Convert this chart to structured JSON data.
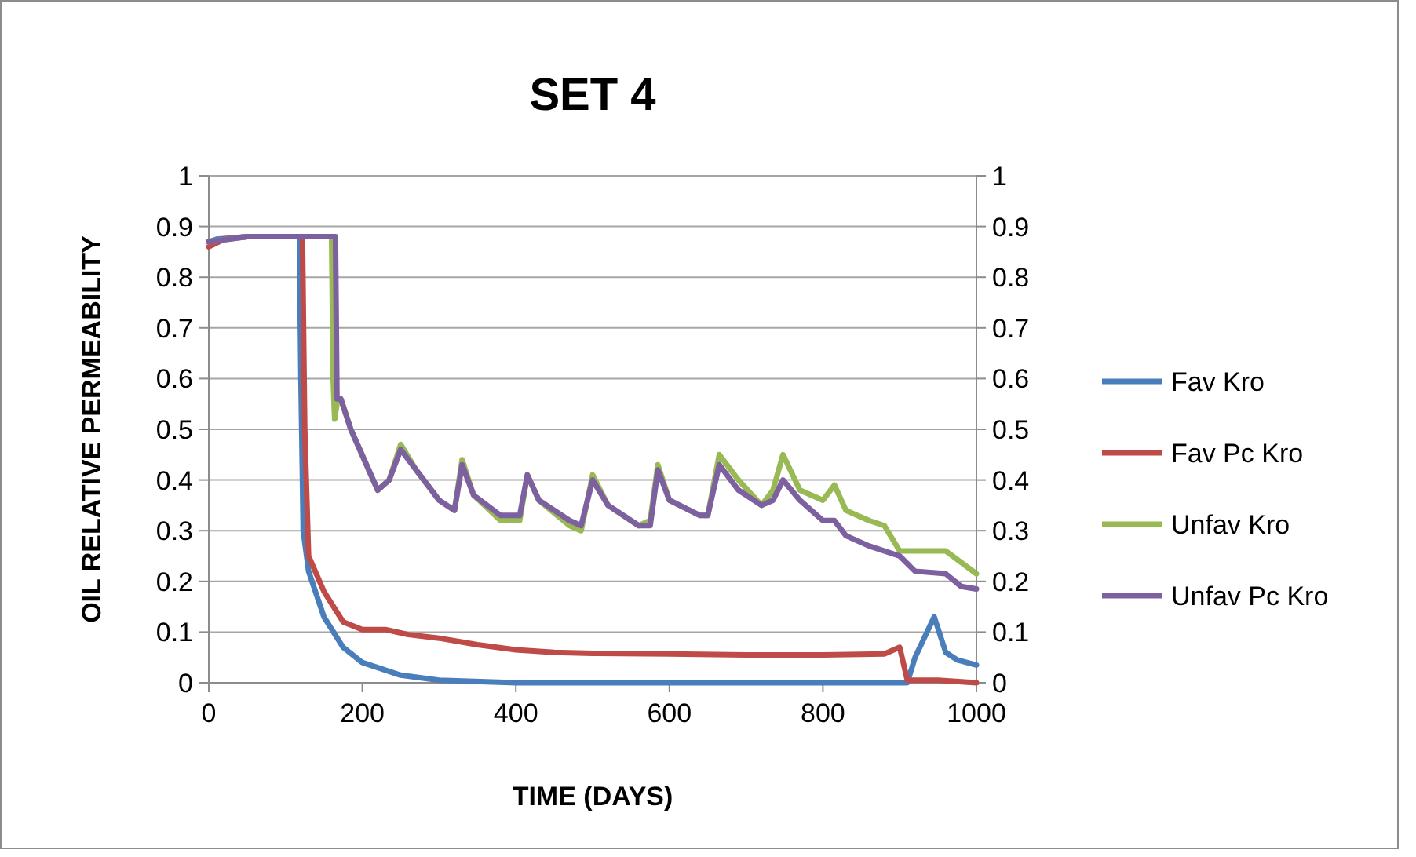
{
  "chart_data": {
    "type": "line",
    "title": "SET 4",
    "xlabel": "TIME (DAYS)",
    "ylabel": "OIL RELATIVE PERMEABILITY",
    "xlim": [
      0,
      1000
    ],
    "xticks": [
      0,
      200,
      400,
      600,
      800,
      1000
    ],
    "ylim": [
      0,
      1
    ],
    "yticks": [
      0,
      0.1,
      0.2,
      0.3,
      0.4,
      0.5,
      0.6,
      0.7,
      0.8,
      0.9,
      1
    ],
    "y2lim": [
      0,
      1
    ],
    "y2ticks": [
      0,
      0.1,
      0.2,
      0.3,
      0.4,
      0.5,
      0.6,
      0.7,
      0.8,
      0.9,
      1
    ],
    "grid": "y",
    "legend": "right",
    "marker": "none",
    "line_style": "solid",
    "series": [
      {
        "name": "Fav Kro",
        "color": "#4a7ebb",
        "x": [
          0,
          10,
          50,
          118,
          120,
          123,
          130,
          150,
          175,
          200,
          250,
          300,
          400,
          910,
          920,
          945,
          960,
          975,
          1000
        ],
        "values": [
          0.87,
          0.875,
          0.88,
          0.88,
          0.6,
          0.3,
          0.22,
          0.13,
          0.07,
          0.04,
          0.015,
          0.005,
          0,
          0,
          0.05,
          0.13,
          0.06,
          0.045,
          0.035
        ]
      },
      {
        "name": "Fav Pc Kro",
        "color": "#be4b48",
        "x": [
          0,
          20,
          50,
          122,
          125,
          130,
          150,
          175,
          200,
          230,
          260,
          300,
          350,
          400,
          450,
          500,
          600,
          700,
          800,
          880,
          900,
          910,
          950,
          1000
        ],
        "values": [
          0.86,
          0.875,
          0.88,
          0.88,
          0.5,
          0.25,
          0.18,
          0.12,
          0.105,
          0.105,
          0.095,
          0.088,
          0.075,
          0.065,
          0.06,
          0.058,
          0.057,
          0.055,
          0.055,
          0.057,
          0.07,
          0.005,
          0.005,
          0
        ]
      },
      {
        "name": "Unfav Kro",
        "color": "#98b954",
        "x": [
          0,
          50,
          160,
          162,
          164,
          168,
          172,
          185,
          220,
          235,
          250,
          270,
          300,
          320,
          330,
          345,
          380,
          405,
          415,
          430,
          470,
          485,
          500,
          520,
          560,
          575,
          585,
          600,
          640,
          650,
          665,
          690,
          720,
          735,
          748,
          770,
          800,
          815,
          830,
          860,
          880,
          900,
          950,
          960,
          1000
        ],
        "values": [
          0.87,
          0.88,
          0.88,
          0.6,
          0.52,
          0.56,
          0.56,
          0.5,
          0.38,
          0.4,
          0.47,
          0.42,
          0.36,
          0.34,
          0.44,
          0.37,
          0.32,
          0.32,
          0.41,
          0.36,
          0.31,
          0.3,
          0.41,
          0.35,
          0.31,
          0.32,
          0.43,
          0.36,
          0.33,
          0.33,
          0.45,
          0.4,
          0.35,
          0.38,
          0.45,
          0.38,
          0.36,
          0.39,
          0.34,
          0.32,
          0.31,
          0.26,
          0.26,
          0.26,
          0.215
        ]
      },
      {
        "name": "Unfav Pc Kro",
        "color": "#7d60a0",
        "x": [
          0,
          50,
          165,
          167,
          172,
          185,
          220,
          235,
          250,
          270,
          300,
          320,
          330,
          345,
          380,
          405,
          415,
          430,
          470,
          485,
          500,
          520,
          560,
          575,
          585,
          600,
          640,
          650,
          665,
          690,
          720,
          735,
          748,
          770,
          800,
          815,
          830,
          860,
          900,
          920,
          960,
          980,
          1000
        ],
        "values": [
          0.87,
          0.88,
          0.88,
          0.56,
          0.56,
          0.5,
          0.38,
          0.4,
          0.46,
          0.42,
          0.36,
          0.34,
          0.43,
          0.37,
          0.33,
          0.33,
          0.41,
          0.36,
          0.32,
          0.31,
          0.4,
          0.35,
          0.31,
          0.31,
          0.42,
          0.36,
          0.33,
          0.33,
          0.43,
          0.38,
          0.35,
          0.36,
          0.4,
          0.36,
          0.32,
          0.32,
          0.29,
          0.27,
          0.25,
          0.22,
          0.215,
          0.19,
          0.185
        ]
      }
    ]
  }
}
